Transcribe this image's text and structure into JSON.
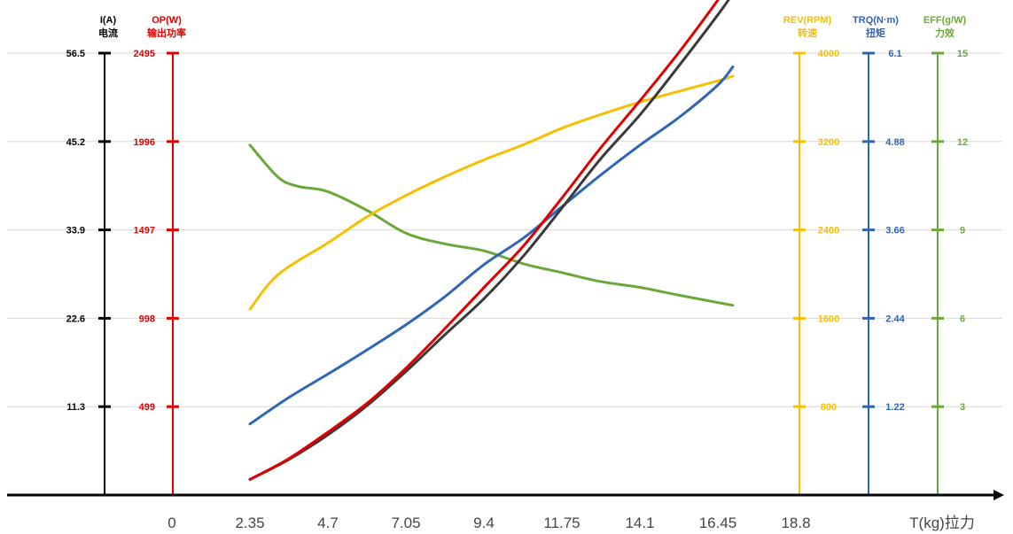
{
  "colors": {
    "current": "#000000",
    "power": "#e00000",
    "rpm": "#f5c000",
    "torque": "#2f65b5",
    "efficiency": "#6aa83a",
    "grid": "#d9d9d9",
    "axis": "#000000"
  },
  "chart_data": {
    "type": "line",
    "x_axis": {
      "ticks": [
        "0",
        "2.35",
        "4.7",
        "7.05",
        "9.4",
        "11.75",
        "14.1",
        "16.45",
        "18.8"
      ],
      "tick_values": [
        0,
        2.35,
        4.7,
        7.05,
        9.4,
        11.75,
        14.1,
        16.45,
        18.8
      ],
      "label": "T(kg)拉力",
      "range": [
        -2.1,
        20.95
      ]
    },
    "y_axes": [
      {
        "key": "current",
        "color": "#000000",
        "side": "left",
        "title": "I(A)",
        "subtitle": "电流",
        "ticks": [
          "56.5",
          "45.2",
          "33.9",
          "22.6",
          "11.3"
        ],
        "tick_values": [
          56.5,
          45.2,
          33.9,
          22.6,
          11.3
        ],
        "range": [
          0,
          56.5
        ]
      },
      {
        "key": "power",
        "color": "#e00000",
        "side": "left",
        "title": "OP(W)",
        "subtitle": "输出功率",
        "ticks": [
          "2495",
          "1996",
          "1497",
          "998",
          "499"
        ],
        "tick_values": [
          2495,
          1996,
          1497,
          998,
          499
        ],
        "range": [
          0,
          2495
        ]
      },
      {
        "key": "rpm",
        "color": "#f5c000",
        "side": "right",
        "title": "REV(RPM)",
        "subtitle": "转速",
        "ticks": [
          "4000",
          "3200",
          "2400",
          "1600",
          "800"
        ],
        "tick_values": [
          4000,
          3200,
          2400,
          1600,
          800
        ],
        "range": [
          0,
          4000
        ]
      },
      {
        "key": "torque",
        "color": "#2f65b5",
        "side": "right",
        "title": "TRQ(N·m)",
        "subtitle": "扭矩",
        "ticks": [
          "6.1",
          "4.88",
          "3.66",
          "2.44",
          "1.22"
        ],
        "tick_values": [
          6.1,
          4.88,
          3.66,
          2.44,
          1.22
        ],
        "range": [
          0,
          6.1
        ]
      },
      {
        "key": "efficiency",
        "color": "#6aa83a",
        "side": "right",
        "title": "EFF(g/W)",
        "subtitle": "力效",
        "ticks": [
          "15",
          "12",
          "9",
          "6",
          "3"
        ],
        "tick_values": [
          15,
          12,
          9,
          6,
          3
        ],
        "range": [
          0,
          15
        ]
      }
    ],
    "grid": true,
    "series": [
      {
        "axis": "current",
        "color": "#3a3a3a",
        "points": [
          [
            2.35,
            2.0
          ],
          [
            3.5,
            4.5
          ],
          [
            4.7,
            7.7
          ],
          [
            5.9,
            11.5
          ],
          [
            7.05,
            15.8
          ],
          [
            8.2,
            20.4
          ],
          [
            9.4,
            25.1
          ],
          [
            10.6,
            30.6
          ],
          [
            11.75,
            36.7
          ],
          [
            12.9,
            42.9
          ],
          [
            14.1,
            48.6
          ],
          [
            15.3,
            55.0
          ],
          [
            16.45,
            61.4
          ],
          [
            16.9,
            64.1
          ]
        ]
      },
      {
        "axis": "power",
        "color": "#e00000",
        "points": [
          [
            2.35,
            88
          ],
          [
            3.5,
            203
          ],
          [
            4.7,
            355
          ],
          [
            5.9,
            521
          ],
          [
            7.05,
            716
          ],
          [
            8.2,
            935
          ],
          [
            9.4,
            1171
          ],
          [
            10.6,
            1408
          ],
          [
            11.75,
            1677
          ],
          [
            12.9,
            1956
          ],
          [
            14.1,
            2226
          ],
          [
            15.3,
            2505
          ],
          [
            16.45,
            2795
          ],
          [
            16.9,
            2925
          ]
        ]
      },
      {
        "axis": "rpm",
        "color": "#f5c000",
        "points": [
          [
            2.35,
            1682
          ],
          [
            3.2,
            1995
          ],
          [
            4.7,
            2282
          ],
          [
            5.9,
            2523
          ],
          [
            7.05,
            2712
          ],
          [
            8.2,
            2878
          ],
          [
            9.4,
            3034
          ],
          [
            10.6,
            3172
          ],
          [
            11.75,
            3320
          ],
          [
            12.9,
            3442
          ],
          [
            14.1,
            3557
          ],
          [
            15.3,
            3656
          ],
          [
            16.45,
            3749
          ],
          [
            16.9,
            3792
          ]
        ]
      },
      {
        "axis": "torque",
        "color": "#2f65b5",
        "points": [
          [
            2.35,
            0.98
          ],
          [
            3.5,
            1.34
          ],
          [
            4.7,
            1.67
          ],
          [
            5.9,
            2.01
          ],
          [
            7.05,
            2.35
          ],
          [
            8.2,
            2.73
          ],
          [
            9.4,
            3.18
          ],
          [
            10.6,
            3.55
          ],
          [
            11.75,
            3.98
          ],
          [
            12.9,
            4.41
          ],
          [
            14.1,
            4.83
          ],
          [
            15.3,
            5.22
          ],
          [
            16.45,
            5.66
          ],
          [
            16.9,
            5.91
          ]
        ]
      },
      {
        "axis": "efficiency",
        "color": "#6aa83a",
        "points": [
          [
            2.35,
            11.88
          ],
          [
            3.2,
            10.79
          ],
          [
            3.8,
            10.48
          ],
          [
            4.7,
            10.3
          ],
          [
            5.9,
            9.65
          ],
          [
            7.05,
            8.89
          ],
          [
            8.2,
            8.53
          ],
          [
            9.4,
            8.29
          ],
          [
            10.6,
            7.85
          ],
          [
            11.75,
            7.55
          ],
          [
            12.9,
            7.25
          ],
          [
            14.1,
            7.05
          ],
          [
            15.3,
            6.78
          ],
          [
            16.9,
            6.44
          ]
        ]
      }
    ]
  }
}
